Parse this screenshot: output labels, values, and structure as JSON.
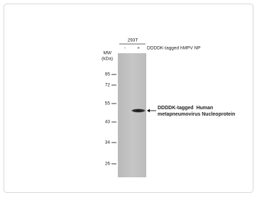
{
  "sample": "293T",
  "lanes": [
    "-",
    "+"
  ],
  "lane_label": "DDDDK-tagged hMPV NP",
  "mw_label": [
    "MW",
    "(kDa)"
  ],
  "markers": [
    "95",
    "72",
    "55",
    "43",
    "34",
    "26"
  ],
  "band_annotation": [
    "DDDDK-tagged  Human",
    "metapneumovirus Nucleoprotein"
  ]
}
